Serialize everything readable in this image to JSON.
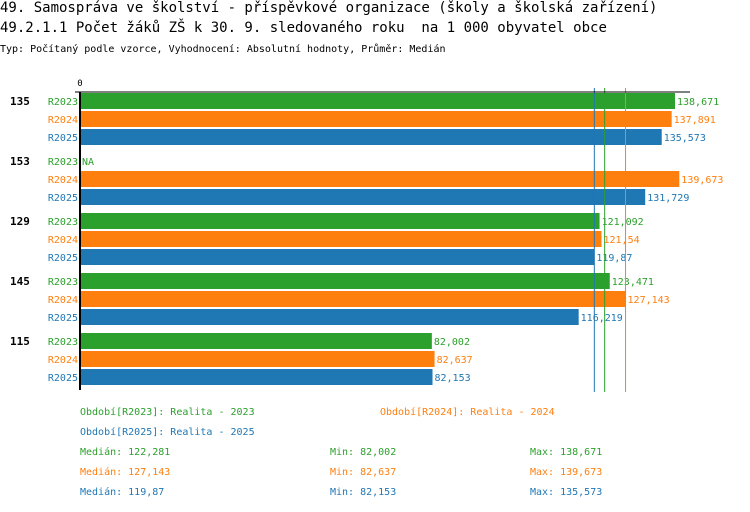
{
  "header": {
    "title": "49. Samospráva ve školství - příspěvkové organizace (školy a školská zařízení)",
    "subtitle": "49.2.1.1 Počet žáků ZŠ k 30. 9. sledovaného roku  na 1 000 obyvatel obce",
    "type_line": "Typ: Počítaný podle vzorce, Vyhodnocení: Absolutní hodnoty, Průměr: Medián"
  },
  "chart_data": {
    "type": "bar",
    "orientation": "horizontal",
    "axis_zero_label": "0",
    "categories": [
      "135",
      "153",
      "129",
      "145",
      "115"
    ],
    "series": [
      {
        "name": "R2023",
        "color": "#2ca02c",
        "values": [
          138.671,
          null,
          121.092,
          123.471,
          82.002
        ],
        "labels": [
          "138,671",
          "NA",
          "121,092",
          "123,471",
          "82,002"
        ]
      },
      {
        "name": "R2024",
        "color": "#ff7f0e",
        "values": [
          137.891,
          139.673,
          121.54,
          127.143,
          82.637
        ],
        "labels": [
          "137,891",
          "139,673",
          "121,54",
          "127,143",
          "82,637"
        ]
      },
      {
        "name": "R2025",
        "color": "#1f77b4",
        "values": [
          135.573,
          131.729,
          119.87,
          116.219,
          82.153
        ],
        "labels": [
          "135,573",
          "131,729",
          "119,87",
          "116,219",
          "82,153"
        ]
      }
    ],
    "medians": [
      122.281,
      127.143,
      119.87
    ],
    "legend": [
      {
        "text": "Období[R2023]: Realita - 2023",
        "color": "#2ca02c"
      },
      {
        "text": "Období[R2024]: Realita - 2024",
        "color": "#ff7f0e"
      },
      {
        "text": "Období[R2025]: Realita - 2025",
        "color": "#1f77b4"
      }
    ],
    "stats": [
      {
        "median": "Medián: 122,281",
        "min": "Min: 82,002",
        "max": "Max: 138,671",
        "color": "#2ca02c"
      },
      {
        "median": "Medián: 127,143",
        "min": "Min: 82,637",
        "max": "Max: 139,673",
        "color": "#ff7f0e"
      },
      {
        "median": "Medián: 119,87",
        "min": "Min: 82,153",
        "max": "Max: 135,573",
        "color": "#1f77b4"
      }
    ]
  }
}
